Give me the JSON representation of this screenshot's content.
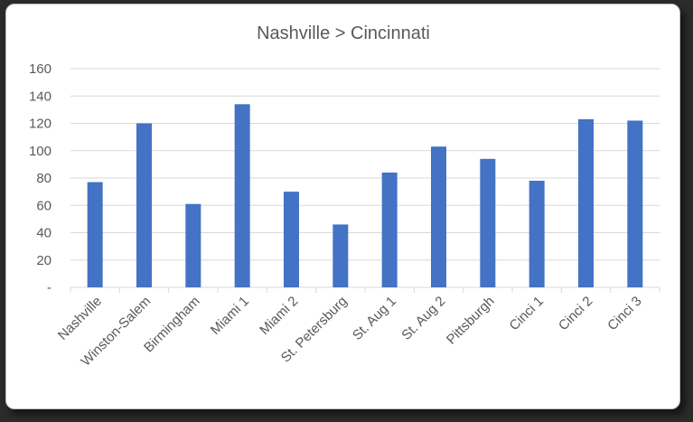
{
  "chart_data": {
    "type": "bar",
    "title": "Nashville > Cincinnati",
    "xlabel": "",
    "ylabel": "",
    "categories": [
      "Nashville",
      "Winston-Salem",
      "Birmingham",
      "Miami 1",
      "Miami 2",
      "St. Petersburg",
      "St. Aug 1",
      "St. Aug 2",
      "Pittsburgh",
      "Cinci 1",
      "Cinci 2",
      "Cinci 3"
    ],
    "values": [
      77,
      120,
      61,
      134,
      70,
      46,
      84,
      103,
      94,
      78,
      123,
      122
    ],
    "ylim": [
      0,
      160
    ],
    "yticks": [
      0,
      20,
      40,
      60,
      80,
      100,
      120,
      140,
      160
    ],
    "ytick_labels": [
      "-",
      "20",
      "40",
      "60",
      "80",
      "100",
      "120",
      "140",
      "160"
    ],
    "grid": true,
    "legend": "none",
    "bar_color": "#4472c4",
    "grid_color": "#d9d9d9"
  }
}
